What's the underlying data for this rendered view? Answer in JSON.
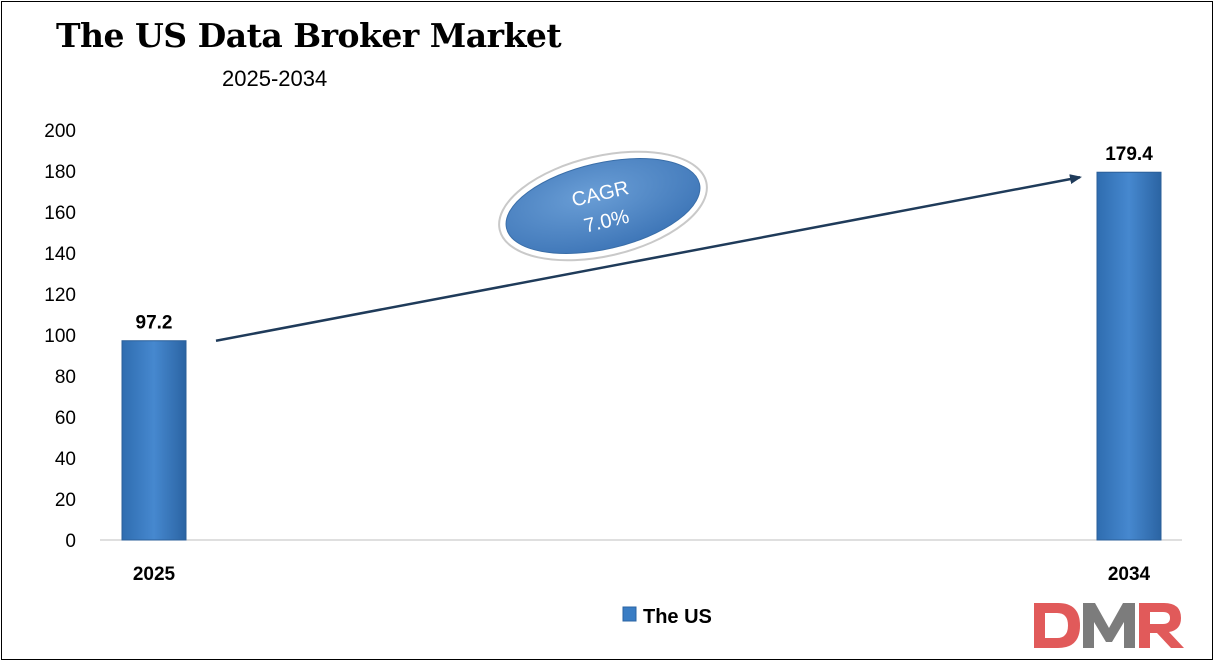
{
  "chart_data": {
    "type": "bar",
    "title": "The US Data Broker Market",
    "subtitle": "2025-2034",
    "categories": [
      "2025",
      "2034"
    ],
    "series": [
      {
        "name": "The US",
        "values": [
          97.2,
          179.4
        ]
      }
    ],
    "data_labels": [
      "97.2",
      "179.4"
    ],
    "yticks": [
      "0",
      "20",
      "40",
      "60",
      "80",
      "100",
      "120",
      "140",
      "160",
      "180",
      "200"
    ],
    "ylim": [
      0,
      200
    ],
    "grid": false,
    "legend_position": "bottom-center",
    "annotation": {
      "line1": "CAGR",
      "line2": "7.0%"
    },
    "colors": {
      "bar": "#3a7dc4",
      "bar_dark": "#2d6aad",
      "arrow": "#1f3b5a",
      "bubble": "#4d85c4"
    }
  },
  "logo": {
    "text": "DMR",
    "colors": [
      "#e15a5a",
      "#7c7c7c"
    ]
  }
}
